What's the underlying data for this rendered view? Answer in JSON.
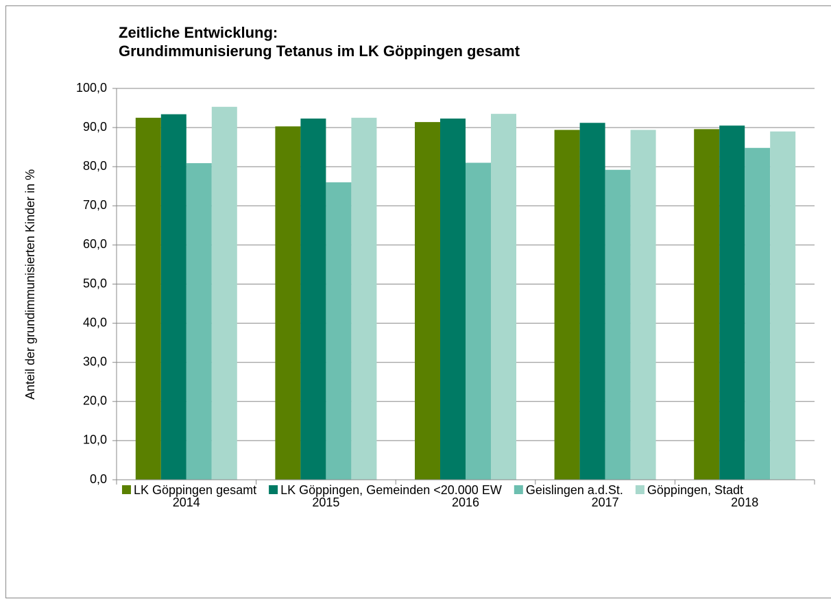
{
  "chart_data": {
    "type": "bar",
    "title": [
      "Zeitliche Entwicklung:",
      "Grundimmunisierung Tetanus im LK Göppingen gesamt"
    ],
    "y_label": "Anteil der grundimmunisierten Kinder in %",
    "categories": [
      "2014",
      "2015",
      "2016",
      "2017",
      "2018"
    ],
    "series": [
      {
        "name": "LK Göppingen gesamt",
        "color": "#5a8000",
        "values": [
          92.5,
          90.3,
          91.4,
          89.4,
          89.6
        ]
      },
      {
        "name": "LK Göppingen, Gemeinden <20.000 EW",
        "color": "#007a64",
        "values": [
          93.4,
          92.3,
          92.3,
          91.2,
          90.5
        ]
      },
      {
        "name": "Geislingen a.d.St.",
        "color": "#6dbfb0",
        "values": [
          80.9,
          76.0,
          81.0,
          79.2,
          84.8
        ]
      },
      {
        "name": "Göppingen, Stadt",
        "color": "#a8d8cc",
        "values": [
          95.3,
          92.5,
          93.5,
          89.4,
          89.0
        ]
      }
    ],
    "ylim": [
      0,
      100
    ],
    "yticks": [
      {
        "value": 0,
        "label": "0,0"
      },
      {
        "value": 10,
        "label": "10,0"
      },
      {
        "value": 20,
        "label": "20,0"
      },
      {
        "value": 30,
        "label": "30,0"
      },
      {
        "value": 40,
        "label": "40,0"
      },
      {
        "value": 50,
        "label": "50,0"
      },
      {
        "value": 60,
        "label": "60,0"
      },
      {
        "value": 70,
        "label": "70,0"
      },
      {
        "value": 80,
        "label": "80,0"
      },
      {
        "value": 90,
        "label": "90,0"
      },
      {
        "value": 100,
        "label": "100,0"
      }
    ],
    "grid": true,
    "legend": "bottom"
  }
}
